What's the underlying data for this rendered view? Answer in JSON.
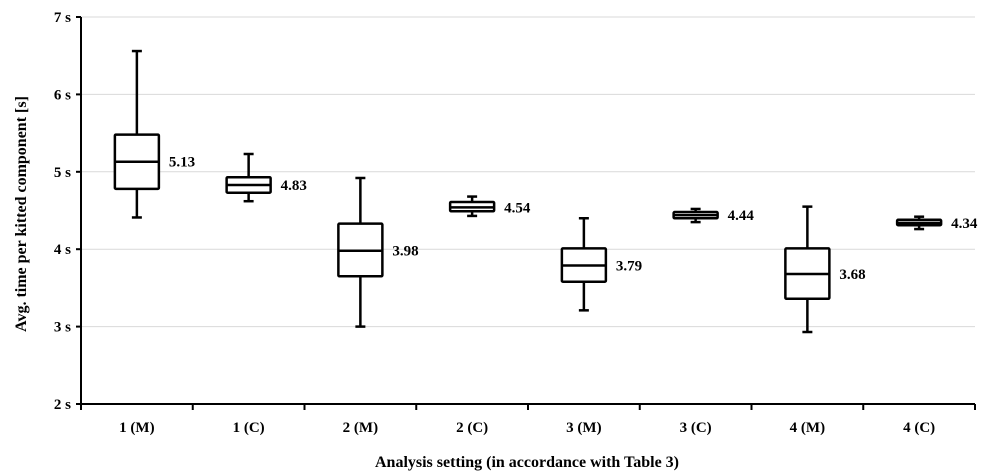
{
  "chart_data": {
    "type": "boxplot",
    "title": "",
    "xlabel": "Analysis setting (in accordance with Table 3)",
    "ylabel": "Avg. time per kitted component [s]",
    "ylim": [
      2,
      7
    ],
    "yticks": [
      {
        "value": 2,
        "label": "2 s"
      },
      {
        "value": 3,
        "label": "3 s"
      },
      {
        "value": 4,
        "label": "4 s"
      },
      {
        "value": 5,
        "label": "5 s"
      },
      {
        "value": 6,
        "label": "6 s"
      },
      {
        "value": 7,
        "label": "7 s"
      }
    ],
    "grid": "horizontal",
    "categories": [
      "1 (M)",
      "1 (C)",
      "2 (M)",
      "2 (C)",
      "3 (M)",
      "3 (C)",
      "4 (M)",
      "4 (C)"
    ],
    "boxes": [
      {
        "category": "1 (M)",
        "min": 4.41,
        "q1": 4.78,
        "median": 5.13,
        "q3": 5.48,
        "max": 6.56,
        "median_label": "5.13"
      },
      {
        "category": "1 (C)",
        "min": 4.62,
        "q1": 4.73,
        "median": 4.83,
        "q3": 4.93,
        "max": 5.23,
        "median_label": "4.83"
      },
      {
        "category": "2 (M)",
        "min": 3.0,
        "q1": 3.65,
        "median": 3.98,
        "q3": 4.33,
        "max": 4.92,
        "median_label": "3.98"
      },
      {
        "category": "2 (C)",
        "min": 4.43,
        "q1": 4.49,
        "median": 4.54,
        "q3": 4.61,
        "max": 4.68,
        "median_label": "4.54"
      },
      {
        "category": "3 (M)",
        "min": 3.21,
        "q1": 3.58,
        "median": 3.79,
        "q3": 4.01,
        "max": 4.4,
        "median_label": "3.79"
      },
      {
        "category": "3 (C)",
        "min": 4.35,
        "q1": 4.4,
        "median": 4.44,
        "q3": 4.48,
        "max": 4.52,
        "median_label": "4.44"
      },
      {
        "category": "4 (M)",
        "min": 2.93,
        "q1": 3.36,
        "median": 3.68,
        "q3": 4.01,
        "max": 4.55,
        "median_label": "3.68"
      },
      {
        "category": "4 (C)",
        "min": 4.26,
        "q1": 4.31,
        "median": 4.34,
        "q3": 4.38,
        "max": 4.42,
        "median_label": "4.34"
      }
    ]
  },
  "colors": {
    "box_stroke": "#000000",
    "box_fill": "#ffffff",
    "grid": "#d9d9d9",
    "axis": "#000000"
  }
}
